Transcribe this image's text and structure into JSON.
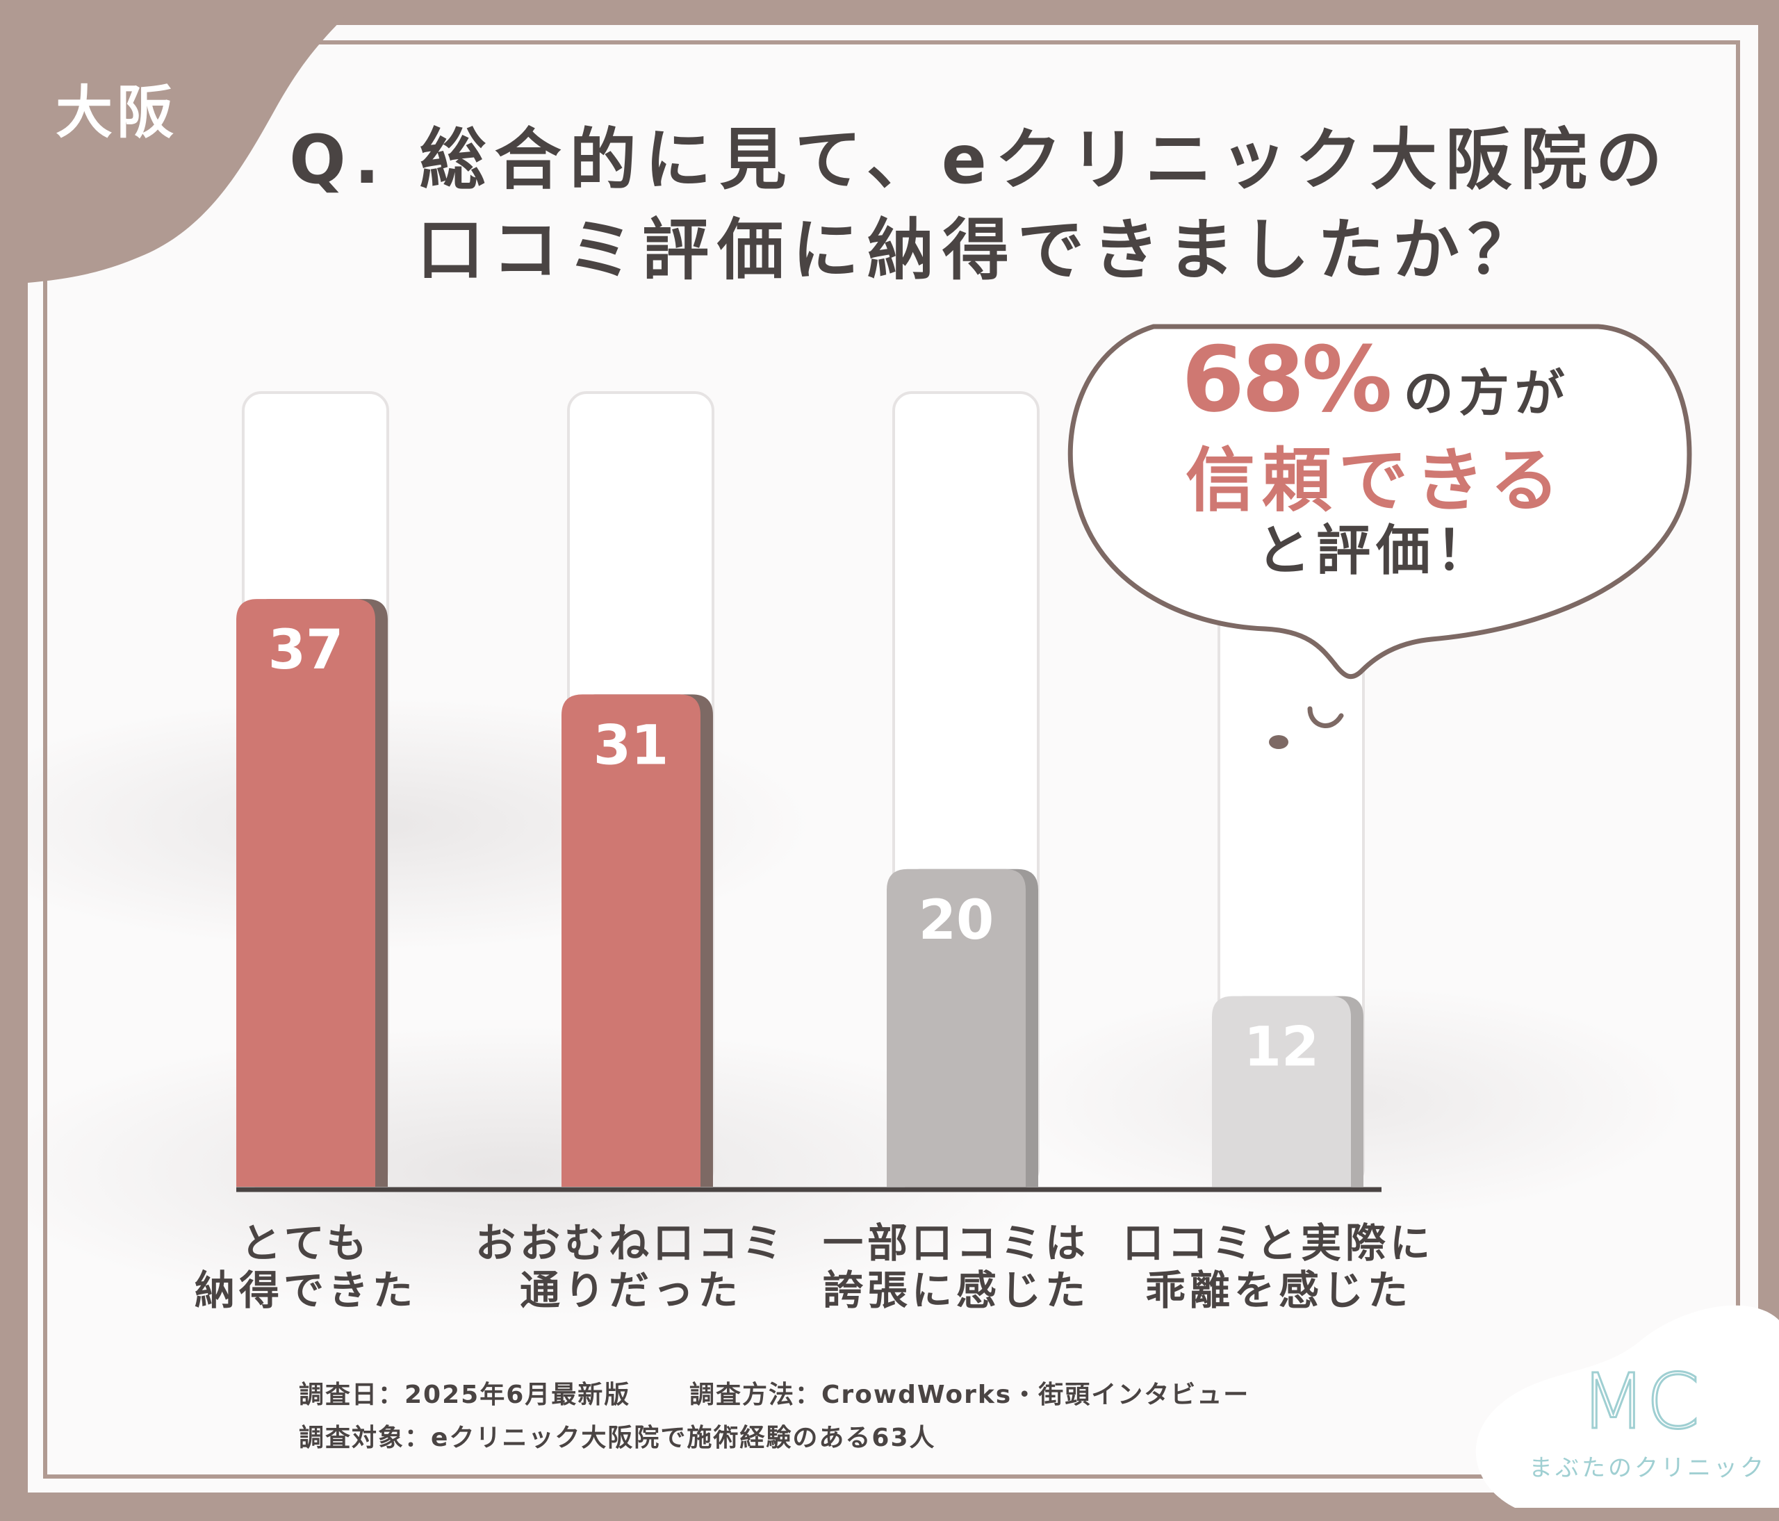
{
  "region_label": "大阪",
  "title": {
    "line1": "Q. 総合的に見て、eクリニック大阪院の",
    "line2": "口コミ評価に納得できましたか？"
  },
  "callout": {
    "percent": "68%",
    "after_percent": "の方が",
    "emphasis": "信頼できる",
    "ending": "と評価！"
  },
  "chart_data": {
    "type": "bar",
    "categories": [
      [
        "とても",
        "納得できた"
      ],
      [
        "おおむね口コミ",
        "通りだった"
      ],
      [
        "一部口コミは",
        "誇張に感じた"
      ],
      [
        "口コミと実際に",
        "乖離を感じた"
      ]
    ],
    "values": [
      37,
      31,
      20,
      12
    ],
    "value_labels": [
      "37",
      "31",
      "20",
      "12"
    ],
    "ylim": [
      0,
      100
    ],
    "grid": false,
    "bar_colors": [
      "#cf7872",
      "#cf7872",
      "#bcb8b7",
      "#dcdada"
    ],
    "shadow_colors": [
      "#7d6964",
      "#7d6964",
      "#9d9a99",
      "#b2afae"
    ]
  },
  "footer": {
    "date": "調査日：2025年6月最新版",
    "method": "調査方法：CrowdWorks・街頭インタビュー",
    "target": "調査対象：eクリニック大阪院で施術経験のある63人"
  },
  "logo": {
    "mark": "MC",
    "name": "まぶたのクリニック"
  },
  "colors": {
    "frame": "#b09a92",
    "accent": "#cf7872",
    "text": "#4a4443",
    "logo": "#9fcfd2"
  }
}
